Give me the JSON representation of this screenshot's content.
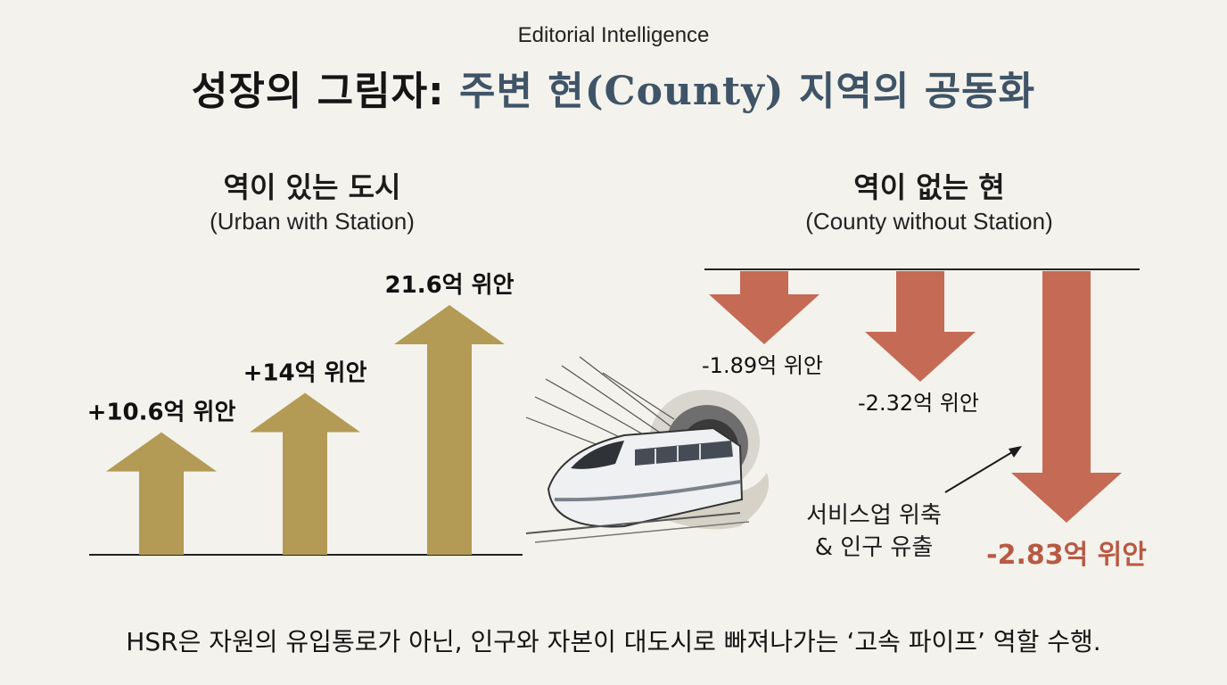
{
  "kicker": "Editorial Intelligence",
  "title": {
    "part1": "성장의 그림자: ",
    "part2": "주변 현(County) 지역의 공동화"
  },
  "colors": {
    "gain": "#b39b55",
    "loss": "#c56a55",
    "axis": "#222222",
    "title_accent": "#3f5467",
    "loss_label": "#b75a44"
  },
  "footer": "HSR은 자원의 유입통로가 아닌, 인구와 자본이 대도시로 빠져나가는 ‘고속 파이프’ 역할 수행.",
  "chart_data": [
    {
      "type": "bar",
      "title": "역이 있는 도시",
      "subtitle": "(Urban with Station)",
      "unit": "억 위안",
      "categories": [
        "",
        "",
        ""
      ],
      "values": [
        10.6,
        14,
        21.6
      ],
      "labels": [
        "+10.6억 위안",
        "+14억 위안",
        "21.6억 위안"
      ],
      "direction": "up"
    },
    {
      "type": "bar",
      "title": "역이 없는 현",
      "subtitle": "(County without Station)",
      "unit": "억 위안",
      "categories": [
        "",
        "",
        ""
      ],
      "values": [
        -1.89,
        -2.32,
        -2.83
      ],
      "labels": [
        "-1.89억 위안",
        "-2.32억 위안",
        "-2.83억 위안"
      ],
      "direction": "down",
      "annotation": [
        "서비스업 위축",
        "& 인구 유출"
      ]
    }
  ]
}
